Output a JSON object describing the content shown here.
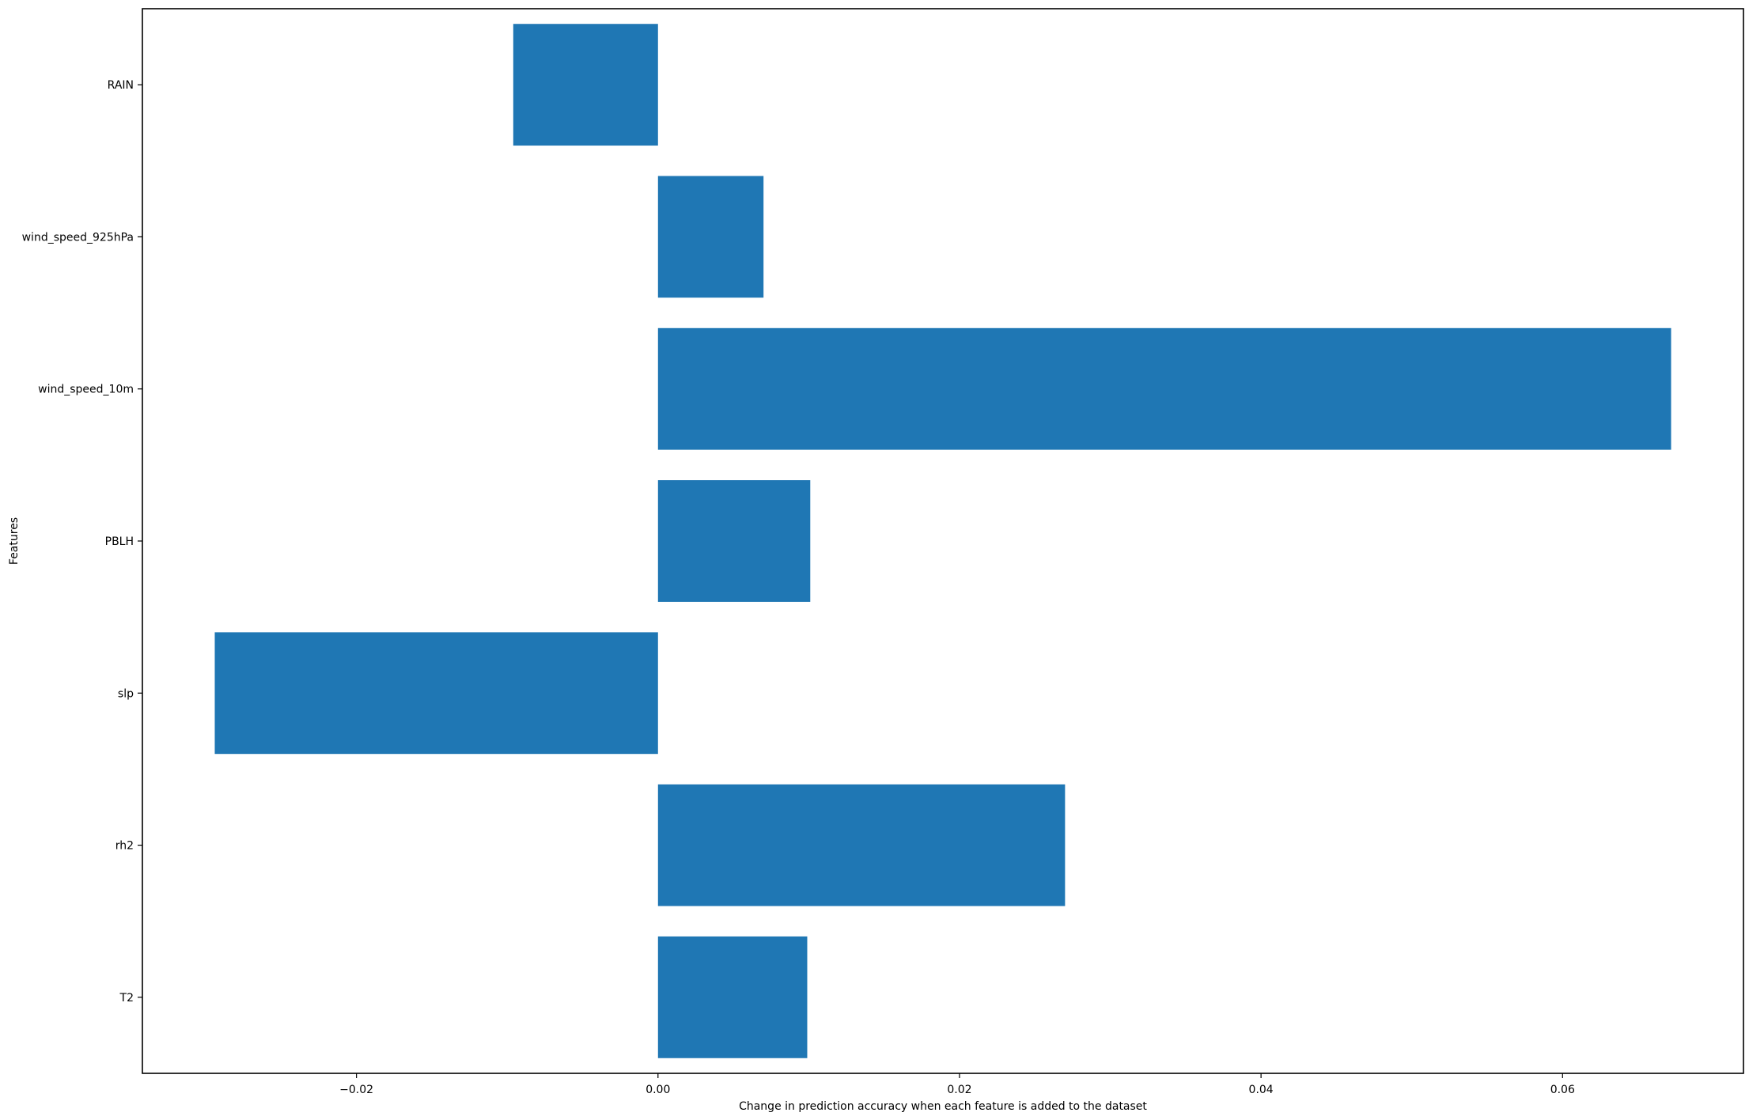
{
  "chart_data": {
    "type": "bar",
    "orientation": "horizontal",
    "title": "",
    "xlabel": "Change in prediction accuracy when each feature is added to the dataset",
    "ylabel": "Features",
    "categories": [
      "T2",
      "rh2",
      "slp",
      "PBLH",
      "wind_speed_10m",
      "wind_speed_925hPa",
      "RAIN"
    ],
    "values": [
      0.0099,
      0.027,
      -0.0294,
      0.0101,
      0.0672,
      0.007,
      -0.0096
    ],
    "xlim": [
      -0.0342,
      0.072
    ],
    "xticks": [
      -0.02,
      0.0,
      0.02,
      0.04,
      0.06
    ],
    "xtick_labels": [
      "−0.02",
      "0.00",
      "0.02",
      "0.04",
      "0.06"
    ],
    "grid": false,
    "bar_color": "#1f77b4"
  }
}
